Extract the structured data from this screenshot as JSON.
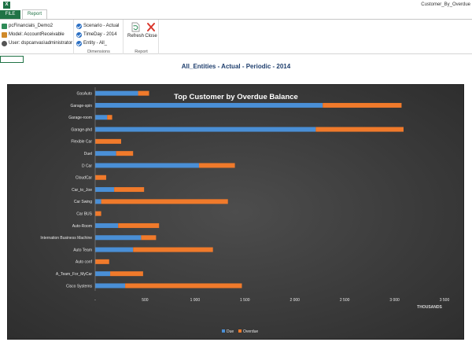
{
  "app": {
    "window_title": "Customer_By_Overdue",
    "logo_text": "X",
    "tabs": [
      {
        "label": "FILE"
      },
      {
        "label": "Report"
      }
    ]
  },
  "ribbon": {
    "connection": {
      "database": "pcFinancials_Demo2",
      "model": "Model: AccountReceivable",
      "user": "User: dspcanvas\\administrator"
    },
    "dimensions": {
      "items": [
        "Scenario - Actual",
        "TimeDay - 2014",
        "Entity - All_"
      ],
      "caption": "Dimensions"
    },
    "report": {
      "refresh_label": "Refresh",
      "close_label": "Close",
      "caption": "Report"
    }
  },
  "sheet": {
    "title": "All_Entities - Actual - Periodic - 2014"
  },
  "colors": {
    "due": "#4a8fd6",
    "overdue": "#f07a2b",
    "excel_green": "#217346"
  },
  "chart_data": {
    "type": "bar",
    "orientation": "horizontal",
    "stacked": true,
    "title": "Top Customer by Overdue Balance",
    "xlabel": "THOUSANDS",
    "xlim": [
      0,
      3500
    ],
    "xticks": [
      0,
      500,
      1000,
      1500,
      2000,
      2500,
      3000,
      3500
    ],
    "xtick_labels": [
      "-",
      "500",
      "1 000",
      "1 500",
      "2 000",
      "2 500",
      "3 000",
      "3 500"
    ],
    "grid": false,
    "legend": "bottom-center",
    "categories": [
      "GasAuto",
      "Garage-spin",
      "Garage-room",
      "Garage-phd",
      "Flexible Car",
      "Duel",
      "D Car",
      "CloudCar",
      "Car_to_Joe",
      "Car Swing",
      "Car BUS",
      "Auto-Room",
      "Internation Business Machine",
      "Auto Team",
      "Auto conf",
      "A_Team_For_MyCar",
      "Cisco Systems"
    ],
    "series": [
      {
        "name": "Due",
        "values": [
          430,
          2280,
          120,
          2210,
          0,
          210,
          1040,
          0,
          190,
          60,
          0,
          230,
          460,
          380,
          0,
          150,
          300
        ]
      },
      {
        "name": "Overdue",
        "values": [
          110,
          790,
          50,
          880,
          260,
          170,
          360,
          110,
          300,
          1270,
          60,
          410,
          150,
          800,
          140,
          330,
          1170
        ]
      }
    ]
  }
}
